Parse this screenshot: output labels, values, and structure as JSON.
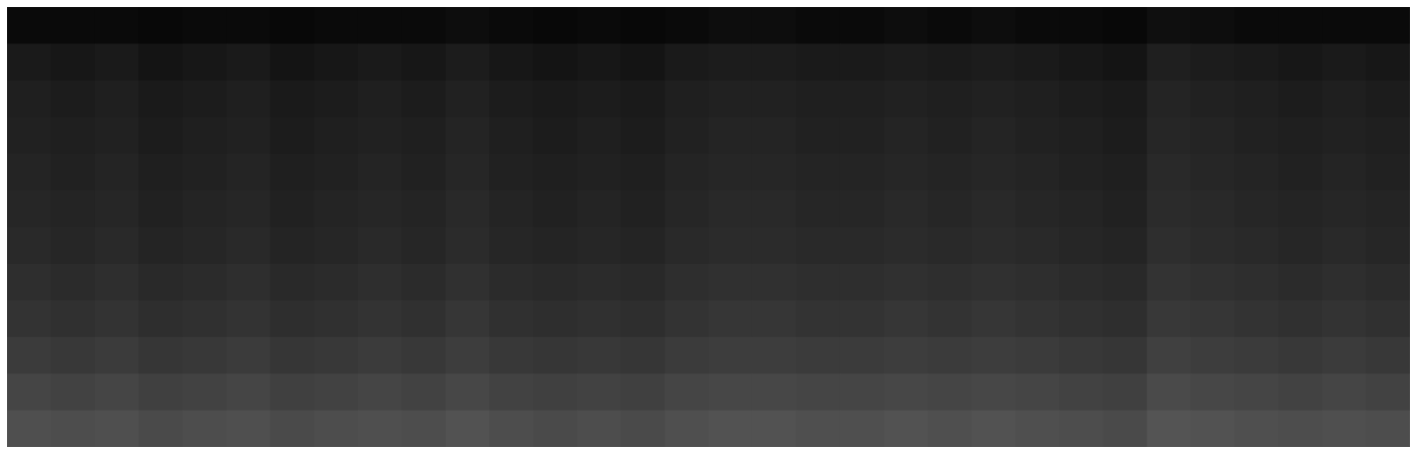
{
  "chart_data": {
    "type": "heatmap",
    "tick_labels": false,
    "cells": [
      [
        4,
        4,
        4,
        3,
        4,
        4,
        3,
        4,
        4,
        4,
        5,
        4,
        3,
        4,
        3,
        4,
        5,
        5,
        4,
        4,
        5,
        4,
        5,
        4,
        4,
        3,
        6,
        5,
        4,
        4,
        4,
        4
      ],
      [
        10,
        9,
        10,
        8,
        9,
        10,
        8,
        9,
        10,
        9,
        11,
        9,
        8,
        9,
        8,
        10,
        11,
        11,
        10,
        10,
        11,
        10,
        11,
        10,
        9,
        8,
        12,
        11,
        10,
        9,
        10,
        9
      ],
      [
        12,
        11,
        12,
        10,
        11,
        12,
        10,
        11,
        12,
        11,
        13,
        11,
        10,
        11,
        10,
        12,
        13,
        13,
        12,
        12,
        13,
        12,
        13,
        12,
        11,
        10,
        14,
        13,
        12,
        11,
        12,
        11
      ],
      [
        13,
        12,
        13,
        11,
        12,
        13,
        11,
        12,
        13,
        12,
        14,
        12,
        11,
        12,
        11,
        13,
        14,
        14,
        13,
        13,
        14,
        13,
        14,
        13,
        12,
        11,
        15,
        14,
        13,
        12,
        13,
        12
      ],
      [
        14,
        13,
        14,
        12,
        13,
        14,
        12,
        13,
        14,
        13,
        15,
        13,
        12,
        13,
        12,
        14,
        15,
        15,
        14,
        14,
        15,
        14,
        15,
        14,
        13,
        12,
        16,
        15,
        14,
        13,
        14,
        13
      ],
      [
        15,
        14,
        15,
        13,
        14,
        15,
        13,
        14,
        15,
        14,
        16,
        14,
        13,
        14,
        13,
        15,
        16,
        16,
        15,
        15,
        16,
        15,
        16,
        15,
        14,
        13,
        17,
        16,
        15,
        14,
        15,
        14
      ],
      [
        16,
        15,
        16,
        14,
        15,
        16,
        14,
        15,
        16,
        15,
        17,
        15,
        14,
        15,
        14,
        16,
        17,
        17,
        16,
        16,
        17,
        16,
        17,
        16,
        15,
        14,
        18,
        17,
        16,
        15,
        16,
        15
      ],
      [
        18,
        17,
        18,
        16,
        17,
        18,
        16,
        17,
        18,
        17,
        19,
        17,
        16,
        17,
        16,
        18,
        19,
        19,
        18,
        18,
        19,
        18,
        19,
        18,
        17,
        16,
        20,
        19,
        18,
        17,
        18,
        17
      ],
      [
        20,
        19,
        20,
        18,
        19,
        20,
        18,
        19,
        20,
        19,
        21,
        19,
        18,
        19,
        18,
        20,
        21,
        21,
        20,
        20,
        21,
        20,
        21,
        20,
        19,
        18,
        22,
        21,
        20,
        19,
        20,
        19
      ],
      [
        23,
        22,
        23,
        21,
        22,
        23,
        21,
        22,
        23,
        22,
        24,
        22,
        21,
        22,
        21,
        23,
        24,
        24,
        23,
        23,
        24,
        23,
        24,
        23,
        22,
        21,
        25,
        24,
        23,
        22,
        23,
        22
      ],
      [
        27,
        26,
        27,
        25,
        26,
        27,
        25,
        26,
        27,
        26,
        28,
        26,
        25,
        26,
        25,
        27,
        28,
        28,
        27,
        27,
        28,
        27,
        28,
        27,
        26,
        25,
        29,
        28,
        27,
        26,
        27,
        26
      ],
      [
        31,
        30,
        31,
        29,
        30,
        31,
        29,
        30,
        31,
        30,
        32,
        30,
        29,
        30,
        29,
        31,
        32,
        32,
        31,
        31,
        32,
        31,
        32,
        31,
        30,
        29,
        33,
        32,
        31,
        30,
        31,
        30
      ]
    ]
  }
}
